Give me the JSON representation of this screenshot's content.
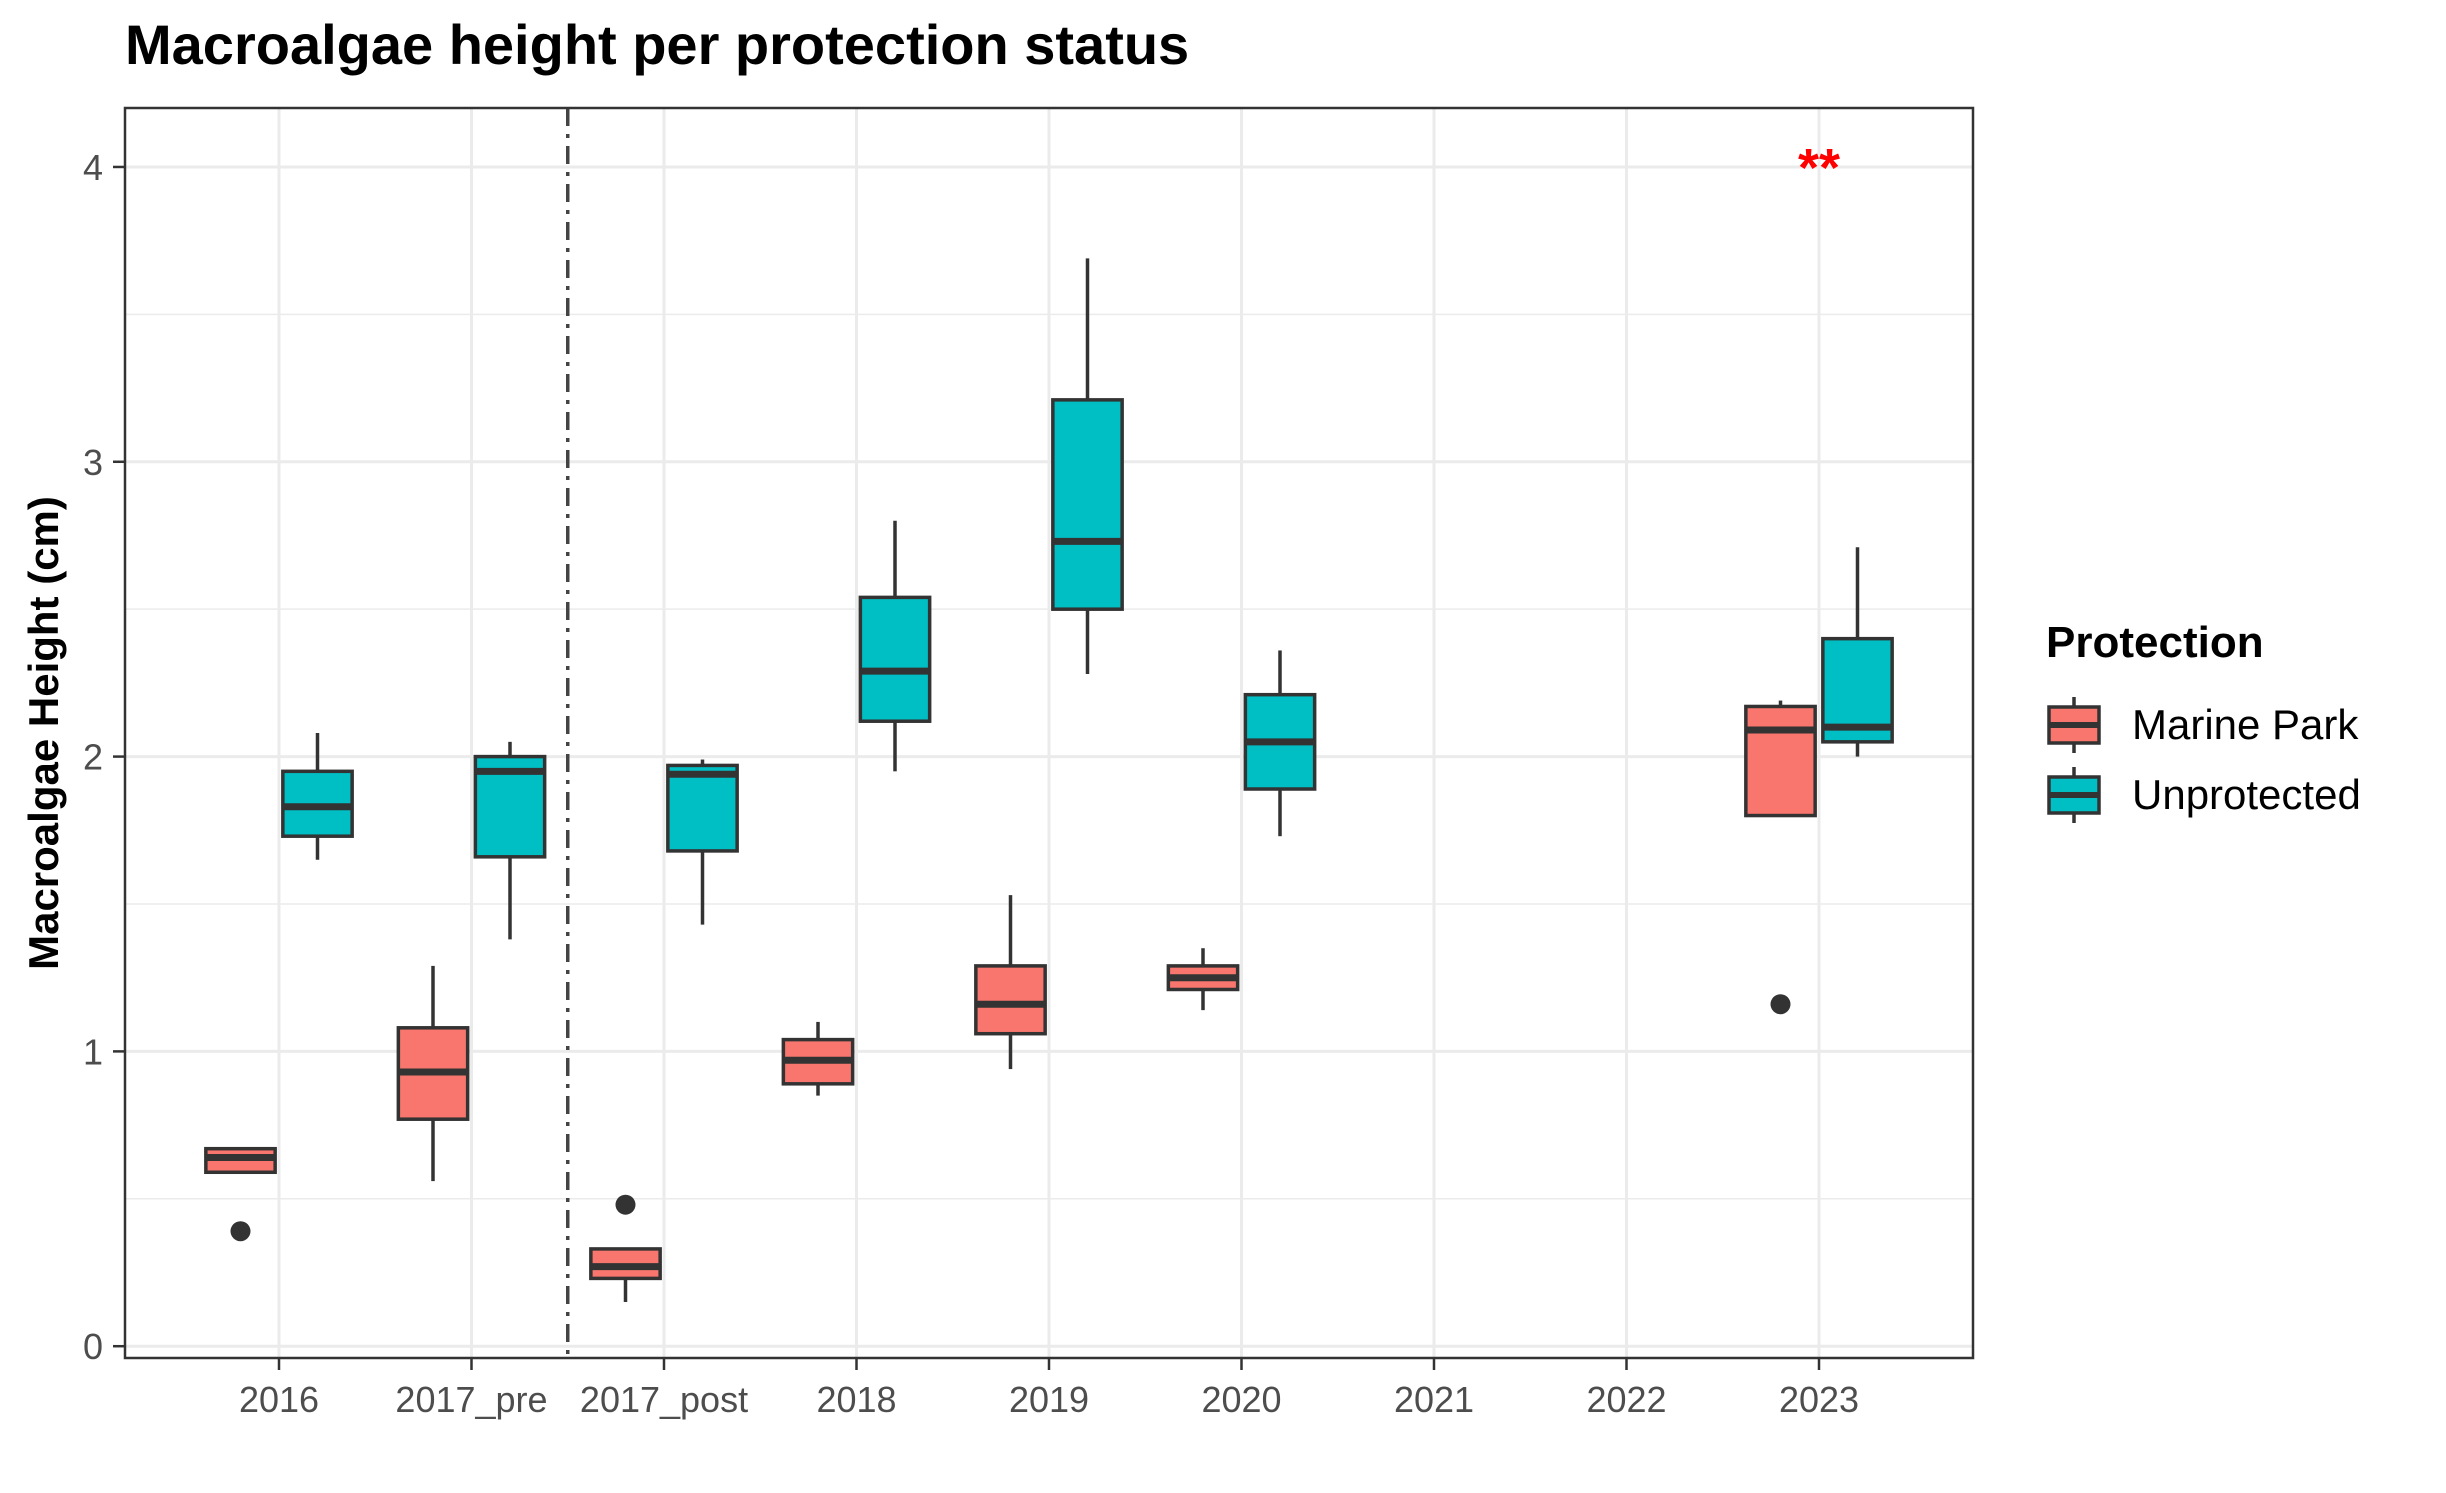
{
  "chart_data": {
    "type": "boxplot",
    "title": "Macroalgae height per protection status",
    "xlabel": "",
    "ylabel": "Macroalgae Height (cm)",
    "ylim": [
      -0.04,
      4.2
    ],
    "yticks": [
      "0",
      "1",
      "2",
      "3",
      "4"
    ],
    "categories": [
      "2016",
      "2017_pre",
      "2017_post",
      "2018",
      "2019",
      "2020",
      "2021",
      "2022",
      "2023"
    ],
    "grid": true,
    "legend_position": "right",
    "legend_title": "Protection",
    "divider_after": "2017_pre",
    "annotations": [
      {
        "text": "**",
        "category": "2023",
        "y": 4.03,
        "color": "#ff0000"
      }
    ],
    "series": [
      {
        "name": "Marine Park",
        "color": "#f8766d",
        "boxes": [
          {
            "category": "2016",
            "min": 0.59,
            "q1": 0.59,
            "median": 0.64,
            "q3": 0.67,
            "max": 0.67,
            "outliers": [
              0.39
            ]
          },
          {
            "category": "2017_pre",
            "min": 0.56,
            "q1": 0.77,
            "median": 0.93,
            "q3": 1.08,
            "max": 1.29,
            "outliers": []
          },
          {
            "category": "2017_post",
            "min": 0.15,
            "q1": 0.23,
            "median": 0.27,
            "q3": 0.33,
            "max": 0.33,
            "outliers": [
              0.48
            ]
          },
          {
            "category": "2018",
            "min": 0.85,
            "q1": 0.89,
            "median": 0.97,
            "q3": 1.04,
            "max": 1.1,
            "outliers": []
          },
          {
            "category": "2019",
            "min": 0.94,
            "q1": 1.06,
            "median": 1.16,
            "q3": 1.29,
            "max": 1.53,
            "outliers": []
          },
          {
            "category": "2020",
            "min": 1.14,
            "q1": 1.21,
            "median": 1.25,
            "q3": 1.29,
            "max": 1.35,
            "outliers": []
          },
          {
            "category": "2023",
            "min": 1.8,
            "q1": 1.8,
            "median": 2.09,
            "q3": 2.17,
            "max": 2.19,
            "outliers": [
              1.16
            ]
          }
        ]
      },
      {
        "name": "Unprotected",
        "color": "#00bfc4",
        "boxes": [
          {
            "category": "2016",
            "min": 1.65,
            "q1": 1.73,
            "median": 1.83,
            "q3": 1.95,
            "max": 2.08,
            "outliers": []
          },
          {
            "category": "2017_pre",
            "min": 1.38,
            "q1": 1.66,
            "median": 1.95,
            "q3": 2.0,
            "max": 2.05,
            "outliers": []
          },
          {
            "category": "2017_post",
            "min": 1.43,
            "q1": 1.68,
            "median": 1.94,
            "q3": 1.97,
            "max": 1.99,
            "outliers": []
          },
          {
            "category": "2018",
            "min": 1.95,
            "q1": 2.12,
            "median": 2.29,
            "q3": 2.54,
            "max": 2.8,
            "outliers": []
          },
          {
            "category": "2019",
            "min": 2.28,
            "q1": 2.5,
            "median": 2.73,
            "q3": 3.21,
            "max": 3.69,
            "outliers": []
          },
          {
            "category": "2020",
            "min": 1.73,
            "q1": 1.89,
            "median": 2.05,
            "q3": 2.21,
            "max": 2.36,
            "outliers": []
          },
          {
            "category": "2023",
            "min": 2.0,
            "q1": 2.05,
            "median": 2.1,
            "q3": 2.4,
            "max": 2.71,
            "outliers": []
          }
        ]
      }
    ]
  }
}
